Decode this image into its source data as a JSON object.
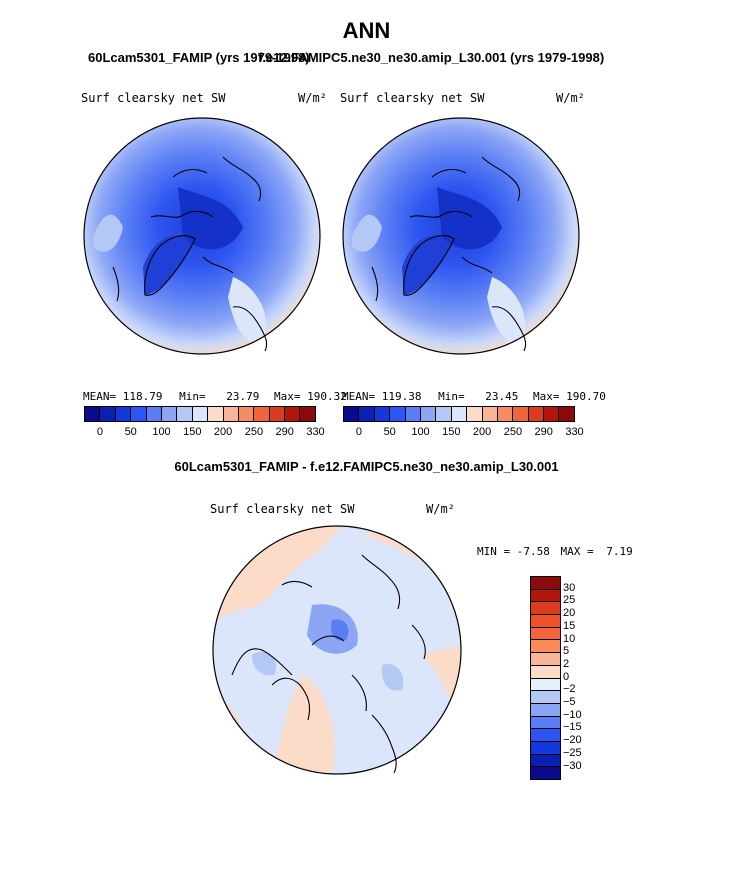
{
  "title": "ANN",
  "panel_left": {
    "run": "60Lcam5301_FAMIP (yrs 1979-1998)",
    "variable": "Surf clearsky net SW",
    "units": "W/m²",
    "stats": {
      "mean": "118.79",
      "min": "23.79",
      "max": "190.32"
    }
  },
  "panel_right": {
    "run": "f.e12.FAMIPC5.ne30_ne30.amip_L30.001 (yrs 1979-1998)",
    "variable": "Surf clearsky net SW",
    "units": "W/m²",
    "stats": {
      "mean": "119.38",
      "min": "23.45",
      "max": "190.70"
    }
  },
  "stat_labels": {
    "mean": "MEAN=",
    "min": "Min=",
    "max": "Max="
  },
  "abs_colorbar": {
    "colors": [
      "#0a0a8c",
      "#0a1fb4",
      "#1438dc",
      "#2d55f5",
      "#5a7ff5",
      "#8ca5f5",
      "#b4c8f5",
      "#dce6fa",
      "#fadcc8",
      "#fab496",
      "#f58c64",
      "#f0643c",
      "#dc3c1e",
      "#b4140a",
      "#8c0a0a"
    ],
    "tick_labels": [
      "0",
      "50",
      "100",
      "150",
      "200",
      "250",
      "290",
      "330"
    ]
  },
  "diff_panel": {
    "title": "60Lcam5301_FAMIP - f.e12.FAMIPC5.ne30_ne30.amip_L30.001",
    "variable": "Surf clearsky net SW",
    "units": "W/m²",
    "min_label": "MIN =",
    "min": "-7.58",
    "max_label": "MAX =",
    "max": "7.19"
  },
  "diff_colorbar": {
    "colors": [
      "#8c0a0a",
      "#b4140a",
      "#dc3c1e",
      "#f05028",
      "#f5643c",
      "#fa8c5a",
      "#fab496",
      "#fadcc8",
      "#e6f0fa",
      "#b4c8f5",
      "#8ca5f5",
      "#5a7ff5",
      "#2d55f5",
      "#1438dc",
      "#0a1fb4",
      "#0a0a8c"
    ],
    "labels": [
      "30",
      "25",
      "20",
      "15",
      "10",
      "5",
      "2",
      "0",
      "−2",
      "−5",
      "−10",
      "−15",
      "−20",
      "−25",
      "−30"
    ]
  }
}
